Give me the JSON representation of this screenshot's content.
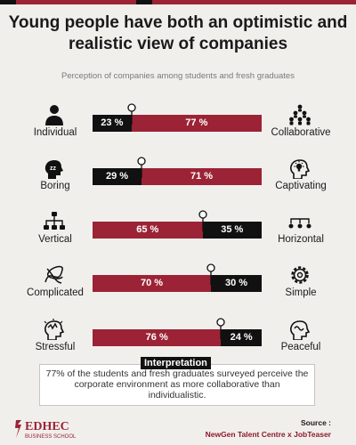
{
  "header": {
    "title": "Young people have both an optimistic and realistic view of companies",
    "subtitle": "Perception of companies among students and fresh graduates"
  },
  "colors": {
    "accent": "#9b2335",
    "dark": "#111111",
    "background": "#f1efec"
  },
  "chart_data": {
    "type": "bar",
    "orientation": "horizontal-stacked",
    "title": "Young people have both an optimistic and realistic view of companies",
    "subtitle": "Perception of companies among students and fresh graduates",
    "rows": [
      {
        "left_label": "Individual",
        "right_label": "Collaborative",
        "left_value": 23,
        "right_value": 77,
        "left_text": "23 %",
        "right_text": "77 %",
        "left_icon": "person-icon",
        "right_icon": "group-icon"
      },
      {
        "left_label": "Boring",
        "right_label": "Captivating",
        "left_value": 29,
        "right_value": 71,
        "left_text": "29 %",
        "right_text": "71 %",
        "left_icon": "sleeping-head-icon",
        "right_icon": "lightbulb-head-icon"
      },
      {
        "left_label": "Vertical",
        "right_label": "Horizontal",
        "left_value": 65,
        "right_value": 35,
        "left_text": "65 %",
        "right_text": "35 %",
        "left_icon": "hierarchy-icon",
        "right_icon": "flat-network-icon"
      },
      {
        "left_label": "Complicated",
        "right_label": "Simple",
        "left_value": 70,
        "right_value": 30,
        "left_text": "70 %",
        "right_text": "30 %",
        "left_icon": "tangled-icon",
        "right_icon": "gear-icon"
      },
      {
        "left_label": "Stressful",
        "right_label": "Peaceful",
        "left_value": 76,
        "right_value": 24,
        "left_text": "76 %",
        "right_text": "24 %",
        "left_icon": "stressed-head-icon",
        "right_icon": "calm-head-icon"
      }
    ],
    "series": [
      {
        "values": [
          23,
          29,
          65,
          70,
          76
        ]
      },
      {
        "values": [
          77,
          71,
          35,
          30,
          24
        ]
      }
    ],
    "xlim": [
      0,
      100
    ],
    "legend": "none",
    "grid": false
  },
  "interpretation": {
    "label": "Interpretation",
    "text": "77% of the students and fresh graduates surveyed perceive the corporate environment as more collaborative than individualistic."
  },
  "footer": {
    "logo_main": "EDHEC",
    "logo_sub": "BUSINESS SCHOOL",
    "source_label": "Source :",
    "source_text": "NewGen Talent Centre x JobTeaser"
  }
}
